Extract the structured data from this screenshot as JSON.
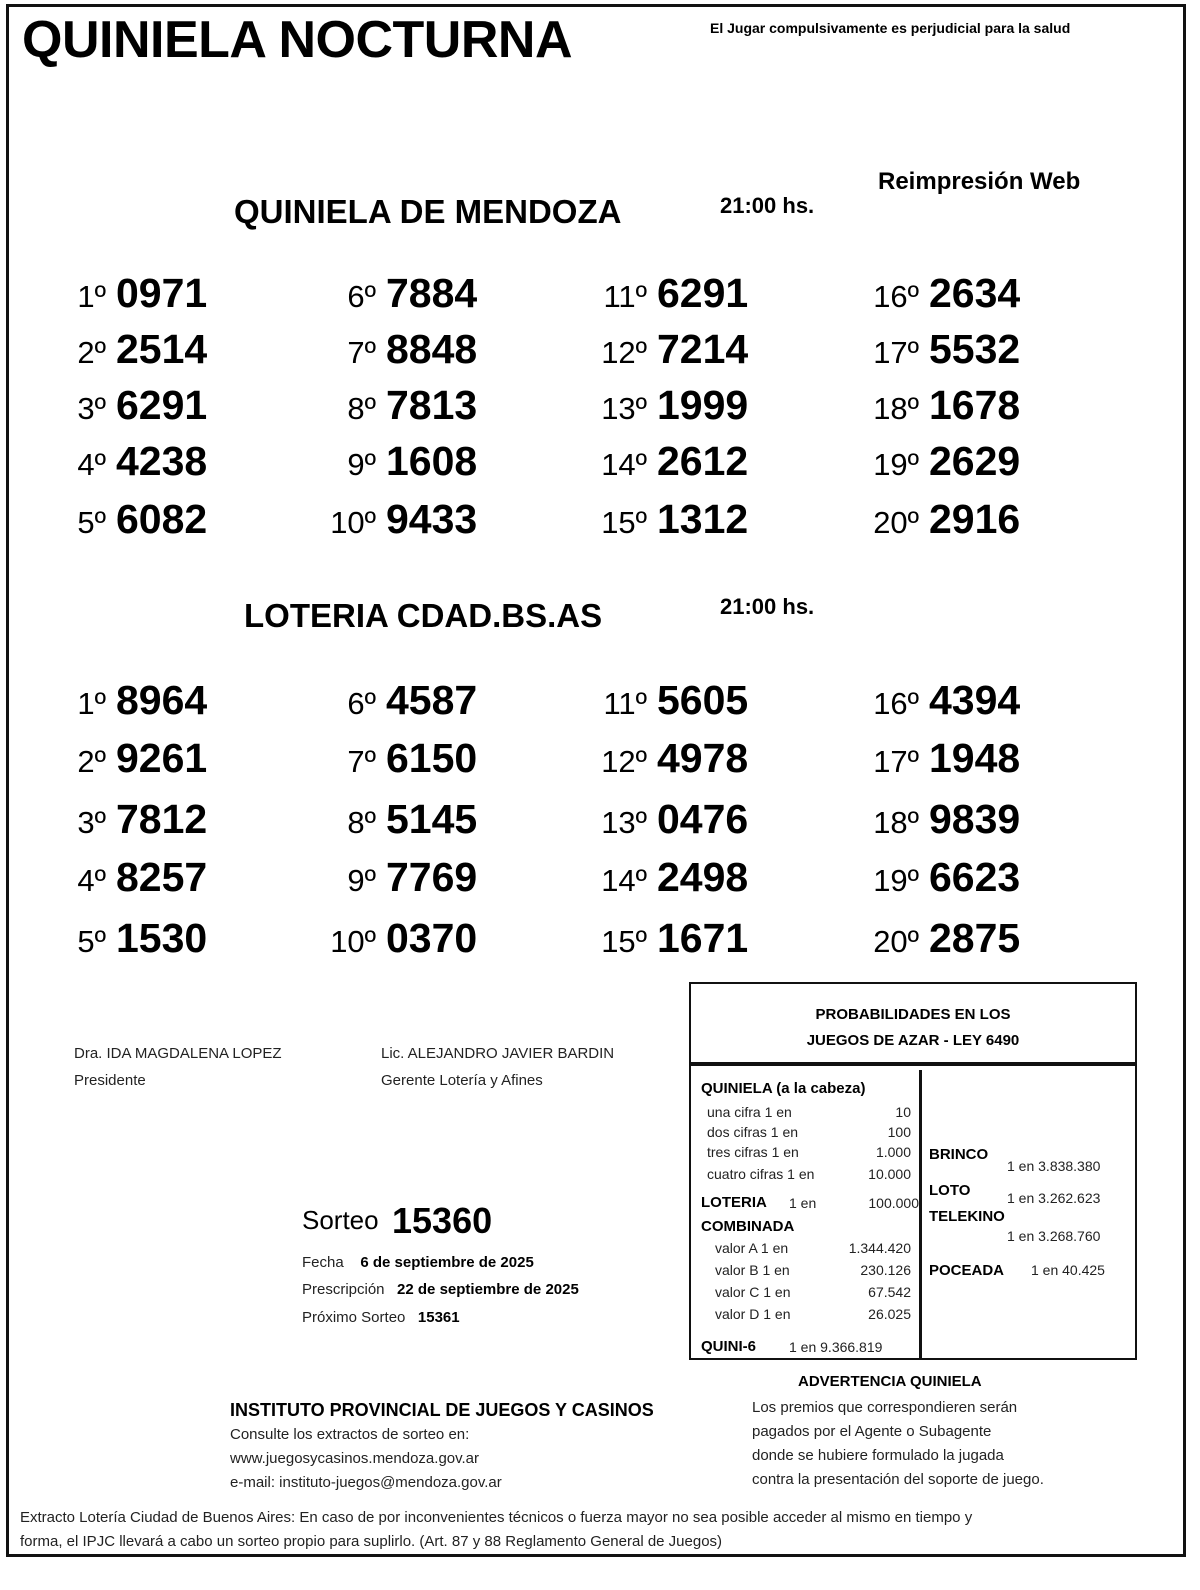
{
  "header": {
    "title": "QUINIELA NOCTURNA",
    "warning": "El Jugar compulsivamente es perjudicial para la salud",
    "reprint": "Reimpresión Web"
  },
  "draws": [
    {
      "name": "QUINIELA  DE MENDOZA",
      "time": "21:00  hs.",
      "results": [
        [
          "1º",
          "0971"
        ],
        [
          "2º",
          "2514"
        ],
        [
          "3º",
          "6291"
        ],
        [
          "4º",
          "4238"
        ],
        [
          "5º",
          "6082"
        ],
        [
          "6º",
          "7884"
        ],
        [
          "7º",
          "8848"
        ],
        [
          "8º",
          "7813"
        ],
        [
          "9º",
          "1608"
        ],
        [
          "10º",
          "9433"
        ],
        [
          "11º",
          "6291"
        ],
        [
          "12º",
          "7214"
        ],
        [
          "13º",
          "1999"
        ],
        [
          "14º",
          "2612"
        ],
        [
          "15º",
          "1312"
        ],
        [
          "16º",
          "2634"
        ],
        [
          "17º",
          "5532"
        ],
        [
          "18º",
          "1678"
        ],
        [
          "19º",
          "2629"
        ],
        [
          "20º",
          "2916"
        ]
      ]
    },
    {
      "name": "LOTERIA CDAD.BS.AS",
      "time": "21:00  hs.",
      "results": [
        [
          "1º",
          "8964"
        ],
        [
          "2º",
          "9261"
        ],
        [
          "3º",
          "7812"
        ],
        [
          "4º",
          "8257"
        ],
        [
          "5º",
          "1530"
        ],
        [
          "6º",
          "4587"
        ],
        [
          "7º",
          "6150"
        ],
        [
          "8º",
          "5145"
        ],
        [
          "9º",
          "7769"
        ],
        [
          "10º",
          "0370"
        ],
        [
          "11º",
          "5605"
        ],
        [
          "12º",
          "4978"
        ],
        [
          "13º",
          "0476"
        ],
        [
          "14º",
          "2498"
        ],
        [
          "15º",
          "1671"
        ],
        [
          "16º",
          "4394"
        ],
        [
          "17º",
          "1948"
        ],
        [
          "18º",
          "9839"
        ],
        [
          "19º",
          "6623"
        ],
        [
          "20º",
          "2875"
        ]
      ]
    }
  ],
  "signatures": [
    {
      "name": "Dra. IDA MAGDALENA LOPEZ",
      "role": "Presidente"
    },
    {
      "name": "Lic. ALEJANDRO JAVIER BARDIN",
      "role": "Gerente Lotería y Afines"
    }
  ],
  "sorteo": {
    "label": "Sorteo",
    "number": "15360",
    "fecha_label": "Fecha",
    "fecha": "6 de septiembre de 2025",
    "prescripcion_label": "Prescripción",
    "prescripcion": "22 de septiembre de 2025",
    "proximo_label": "Próximo Sorteo",
    "proximo": "15361"
  },
  "probabilities": {
    "heading_line1": "PROBABILIDADES EN LOS",
    "heading_line2": "JUEGOS DE AZAR - LEY 6490",
    "quiniela_title": "QUINIELA (a la cabeza)",
    "quiniela": [
      [
        "una cifra  1 en",
        "10"
      ],
      [
        "dos cifras 1 en",
        "100"
      ],
      [
        "tres cifras 1 en",
        "1.000"
      ],
      [
        "cuatro cifras 1 en",
        "10.000"
      ]
    ],
    "loteria": {
      "label": "LOTERIA",
      "text": "1 en",
      "value": "100.000"
    },
    "combinada_title": "COMBINADA",
    "combinada": [
      [
        "valor A 1 en",
        "1.344.420"
      ],
      [
        "valor B 1 en",
        "230.126"
      ],
      [
        "valor C 1 en",
        "67.542"
      ],
      [
        "valor D 1 en",
        "26.025"
      ]
    ],
    "quini6": {
      "label": "QUINI-6",
      "text": "1 en  9.366.819"
    },
    "right": [
      {
        "label": "BRINCO",
        "value": "1 en 3.838.380"
      },
      {
        "label": "LOTO",
        "value": "1 en 3.262.623"
      },
      {
        "label": "TELEKINO",
        "value": "1 en 3.268.760"
      },
      {
        "label": "POCEADA",
        "value": "1 en 40.425"
      }
    ]
  },
  "institute": {
    "name": "INSTITUTO PROVINCIAL DE JUEGOS Y CASINOS",
    "line1": "Consulte los extractos de sorteo en:",
    "web": "www.juegosycasinos.mendoza.gov.ar",
    "email": "e-mail:  instituto-juegos@mendoza.gov.ar"
  },
  "advertencia": {
    "title": "ADVERTENCIA QUINIELA",
    "lines": [
      "Los premios que correspondieren serán",
      "pagados por el Agente o Subagente",
      "donde se hubiere formulado la jugada",
      "contra la presentación del soporte de juego."
    ]
  },
  "footer": {
    "line1": "Extracto Lotería Ciudad de Buenos Aires: En caso de por inconvenientes técnicos o fuerza mayor no sea posible acceder al mismo en tiempo y",
    "line2": "forma, el IPJC llevará a cabo un sorteo propio para suplirlo. (Art. 87 y 88 Reglamento General de Juegos)"
  }
}
